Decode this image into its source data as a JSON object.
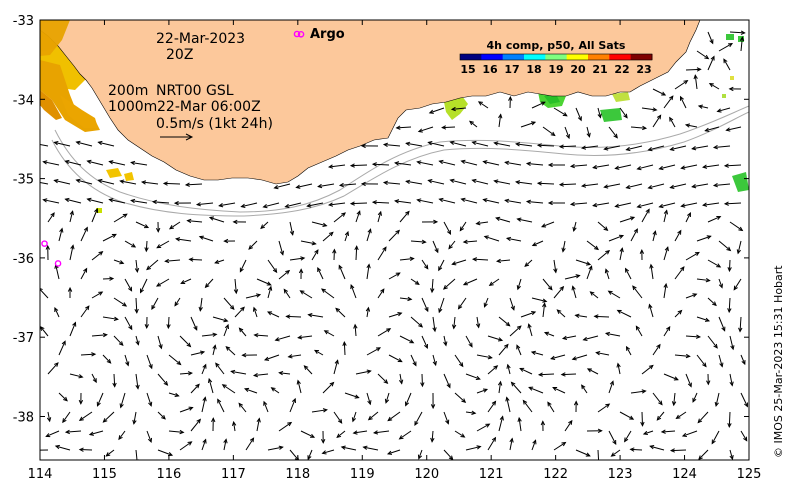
{
  "map": {
    "lon_ticks": [
      "114",
      "115",
      "116",
      "117",
      "118",
      "119",
      "120",
      "121",
      "122",
      "123",
      "124",
      "125"
    ],
    "lat_ticks": [
      "-33",
      "-34",
      "-35",
      "-36",
      "-37",
      "-38"
    ],
    "lon_range": [
      114,
      125
    ],
    "lat_range": [
      -38.55,
      -33
    ]
  },
  "annotations": {
    "date": "22-Mar-2023",
    "time": "20Z",
    "depth_200": "200m",
    "depth_1000": "1000m",
    "product": "NRT00 GSL",
    "altimetry_time": "22-Mar 06:00Z",
    "scale": "0.5m/s (1kt 24h)",
    "argo_label": "Argo"
  },
  "colorbar": {
    "title": "4h comp, p50, All Sats",
    "ticks": [
      "15",
      "16",
      "17",
      "18",
      "19",
      "20",
      "21",
      "22",
      "23"
    ],
    "colors": [
      "#00007f",
      "#0000ff",
      "#0080ff",
      "#00ffff",
      "#80ff80",
      "#ffff00",
      "#ff8000",
      "#ff0000",
      "#7f0000"
    ]
  },
  "credit": "© IMOS 25-Mar-2023 15:31 Hobart",
  "argo_floats": [
    {
      "lon": 118.05,
      "lat": -33.18
    },
    {
      "lon": 114.07,
      "lat": -35.82
    },
    {
      "lon": 114.28,
      "lat": -36.07
    }
  ],
  "colors": {
    "land": "#fcc89b",
    "argo": "#ff00ff",
    "isobath": "#aaaaaa"
  }
}
